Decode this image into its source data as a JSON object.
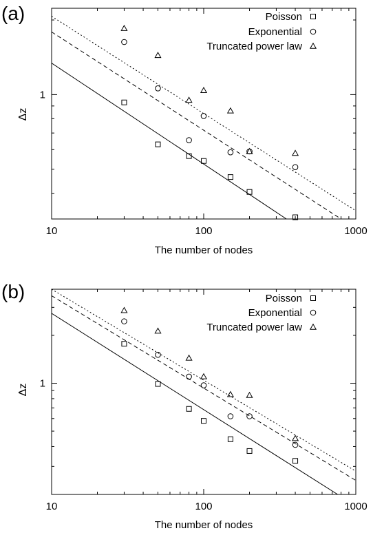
{
  "chart_data": [
    {
      "type": "scatter",
      "panel_label": "(a)",
      "xscale": "log",
      "yscale": "log",
      "xlim": [
        10,
        1000
      ],
      "ylim": [
        0.315,
        2.23
      ],
      "xticks": [
        10,
        100,
        1000
      ],
      "xtick_labels": [
        "10",
        "100",
        "1000"
      ],
      "yticks": [
        1
      ],
      "ytick_labels": [
        "1"
      ],
      "xlabel": "The number of nodes",
      "ylabel": "Δz",
      "legend_position": "top-right",
      "series": [
        {
          "name": "Poisson",
          "marker": "square",
          "line_style": "solid",
          "x": [
            30,
            50,
            80,
            100,
            150,
            200,
            400
          ],
          "y": [
            0.93,
            0.63,
            0.565,
            0.54,
            0.465,
            0.405,
            0.32
          ],
          "fit_x": [
            10,
            350
          ],
          "fit_y": [
            1.34,
            0.315
          ]
        },
        {
          "name": "Exponential",
          "marker": "circle",
          "line_style": "dashed",
          "x": [
            30,
            50,
            80,
            100,
            150,
            200,
            400
          ],
          "y": [
            1.63,
            1.06,
            0.655,
            0.82,
            0.585,
            0.59,
            0.51
          ],
          "fit_x": [
            10,
            800
          ],
          "fit_y": [
            1.79,
            0.315
          ]
        },
        {
          "name": "Truncated power law",
          "marker": "triangle",
          "line_style": "dotted",
          "x": [
            30,
            50,
            80,
            100,
            150,
            200,
            400
          ],
          "y": [
            1.85,
            1.44,
            0.95,
            1.04,
            0.86,
            0.59,
            0.58
          ],
          "fit_x": [
            10,
            1000
          ],
          "fit_y": [
            2.07,
            0.34
          ]
        }
      ]
    },
    {
      "type": "scatter",
      "panel_label": "(b)",
      "xscale": "log",
      "yscale": "log",
      "xlim": [
        10,
        1000
      ],
      "ylim": [
        0.2,
        3.9
      ],
      "xticks": [
        10,
        100,
        1000
      ],
      "xtick_labels": [
        "10",
        "100",
        "1000"
      ],
      "yticks": [
        1
      ],
      "ytick_labels": [
        "1"
      ],
      "xlabel": "The number of nodes",
      "ylabel": "Δz",
      "legend_position": "top-right",
      "series": [
        {
          "name": "Poisson",
          "marker": "square",
          "line_style": "solid",
          "x": [
            30,
            50,
            80,
            100,
            150,
            200,
            400
          ],
          "y": [
            1.77,
            0.99,
            0.69,
            0.58,
            0.445,
            0.375,
            0.325
          ],
          "fit_x": [
            10,
            760
          ],
          "fit_y": [
            2.75,
            0.2
          ]
        },
        {
          "name": "Exponential",
          "marker": "circle",
          "line_style": "dashed",
          "x": [
            30,
            50,
            80,
            100,
            150,
            200,
            400
          ],
          "y": [
            2.45,
            1.51,
            1.1,
            0.97,
            0.62,
            0.62,
            0.41
          ],
          "fit_x": [
            10,
            1000
          ],
          "fit_y": [
            3.55,
            0.245
          ]
        },
        {
          "name": "Truncated power law",
          "marker": "triangle",
          "line_style": "dotted",
          "x": [
            30,
            50,
            80,
            100,
            150,
            200,
            400
          ],
          "y": [
            2.87,
            2.13,
            1.44,
            1.1,
            0.85,
            0.84,
            0.45
          ],
          "fit_x": [
            10,
            1000
          ],
          "fit_y": [
            3.9,
            0.28
          ]
        }
      ]
    }
  ]
}
